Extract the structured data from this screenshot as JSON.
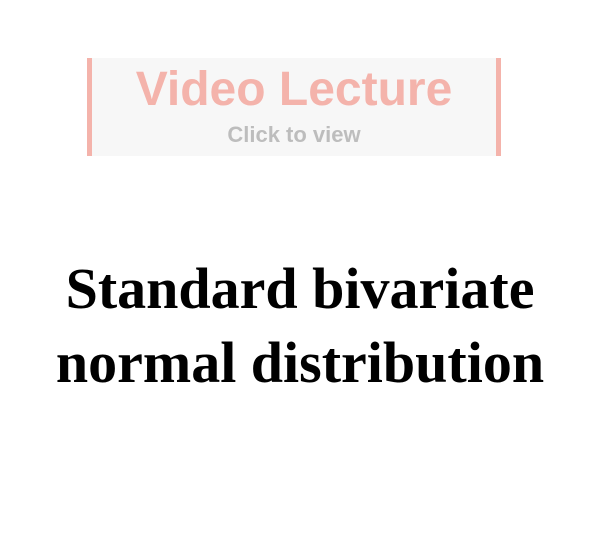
{
  "video_banner": {
    "title": "Video Lecture",
    "subtitle": "Click to view",
    "colors": {
      "accent": "#f4b3ab",
      "subtitle": "#bdbdbd",
      "background": "#f7f7f7"
    }
  },
  "page_title": {
    "line1": "Standard bivariate",
    "line2": "normal distribution"
  }
}
